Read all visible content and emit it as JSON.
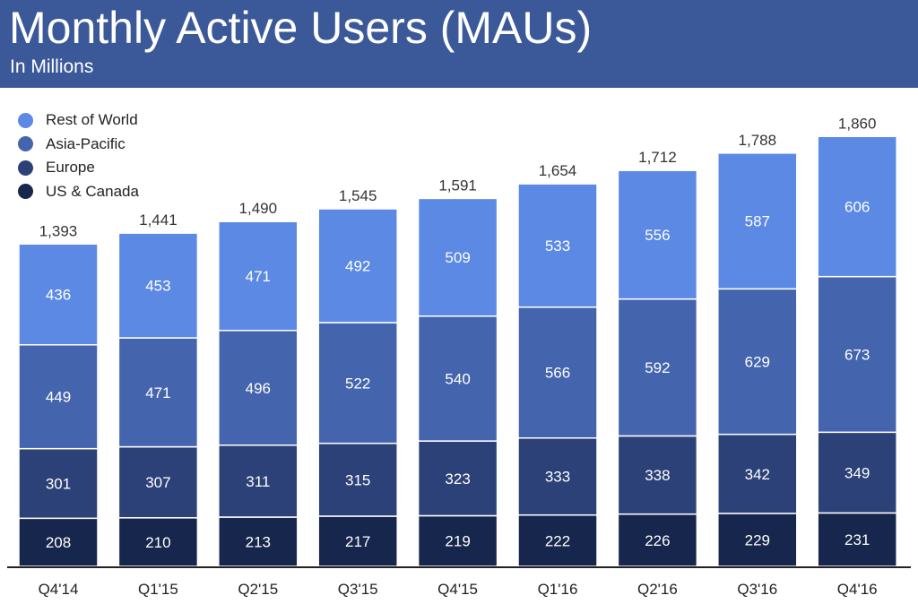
{
  "header": {
    "title": "Monthly Active Users (MAUs)",
    "subtitle": "In Millions"
  },
  "colors": {
    "header_bg": "#3b5998",
    "total_label": "#333333",
    "segment_label": "#ffffff",
    "axis": "#222222"
  },
  "chart_data": {
    "type": "bar",
    "stacked": true,
    "title": "Monthly Active Users (MAUs)",
    "subtitle": "In Millions",
    "xlabel": "",
    "ylabel": "",
    "ylim": [
      0,
      1860
    ],
    "grid": false,
    "legend_position": "top-left",
    "categories": [
      "Q4'14",
      "Q1'15",
      "Q2'15",
      "Q3'15",
      "Q4'15",
      "Q1'16",
      "Q2'16",
      "Q3'16",
      "Q4'16"
    ],
    "totals": [
      "1,393",
      "1,441",
      "1,490",
      "1,545",
      "1,591",
      "1,654",
      "1,712",
      "1,788",
      "1,860"
    ],
    "series": [
      {
        "name": "US & Canada",
        "color": "#17264d",
        "values": [
          208,
          210,
          213,
          217,
          219,
          222,
          226,
          229,
          231
        ]
      },
      {
        "name": "Europe",
        "color": "#2c4177",
        "values": [
          301,
          307,
          311,
          315,
          323,
          333,
          338,
          342,
          349
        ]
      },
      {
        "name": "Asia-Pacific",
        "color": "#4465ae",
        "values": [
          449,
          471,
          496,
          522,
          540,
          566,
          592,
          629,
          673
        ]
      },
      {
        "name": "Rest of World",
        "color": "#5b89e4",
        "values": [
          436,
          453,
          471,
          492,
          509,
          533,
          556,
          587,
          606
        ]
      }
    ]
  }
}
